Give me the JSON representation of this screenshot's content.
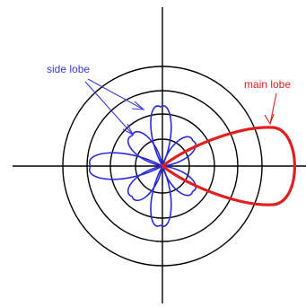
{
  "labels": {
    "side_lobe": "side lobe",
    "main_lobe": "main lobe"
  },
  "colors": {
    "axes": "#000000",
    "rings": "#000000",
    "side_lobes": "#2b2bd6",
    "main_lobe": "#e02020",
    "side_label": "#3a3ad8",
    "main_label": "#e02020"
  },
  "pattern": {
    "ring_count": 4,
    "side_lobe_count": 7
  }
}
